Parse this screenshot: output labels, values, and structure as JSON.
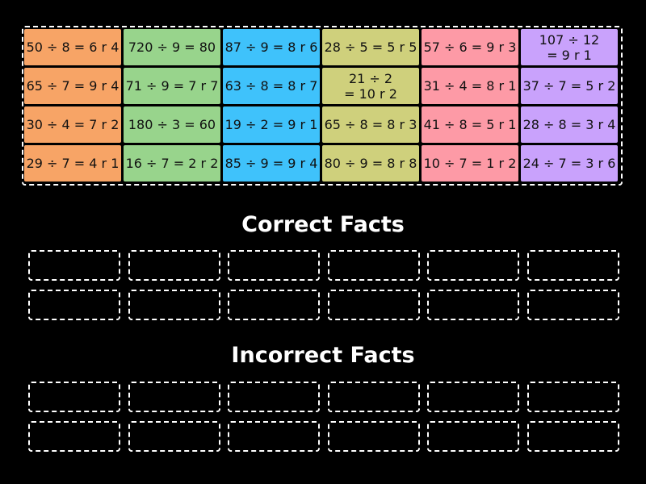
{
  "tiles": [
    "50 ÷ 8 = 6 r 4",
    "720 ÷ 9 = 80",
    "87 ÷ 9 = 8 r 6",
    "28 ÷ 5 = 5 r 5",
    "57 ÷ 6 = 9 r 3",
    "107 ÷ 12\n= 9 r 1",
    "65 ÷ 7 = 9 r 4",
    "71 ÷ 9 = 7 r 7",
    "63 ÷ 8 = 8 r 7",
    "21 ÷ 2\n= 10 r 2",
    "31 ÷ 4 = 8 r 1",
    "37 ÷ 7 = 5 r 2",
    "30 ÷ 4 = 7 r 2",
    "180 ÷ 3 = 60",
    "19 ÷ 2 = 9 r 1",
    "65 ÷ 8 = 8 r 3",
    "41 ÷ 8 = 5 r 1",
    "28 ÷ 8 = 3 r 4",
    "29 ÷ 7 = 4 r 1",
    "16 ÷ 7 = 2 r 2",
    "85 ÷ 9 = 9 r 4",
    "80 ÷ 9 = 8 r 8",
    "10 ÷ 7 = 1 r 2",
    "24 ÷ 7 = 3 r 6"
  ],
  "column_colors": [
    "#f7a466",
    "#98d48c",
    "#3fc2fb",
    "#cfd07c",
    "#fd9aa6",
    "#c9a2fc"
  ],
  "groups": {
    "correct": "Correct Facts",
    "incorrect": "Incorrect Facts"
  }
}
